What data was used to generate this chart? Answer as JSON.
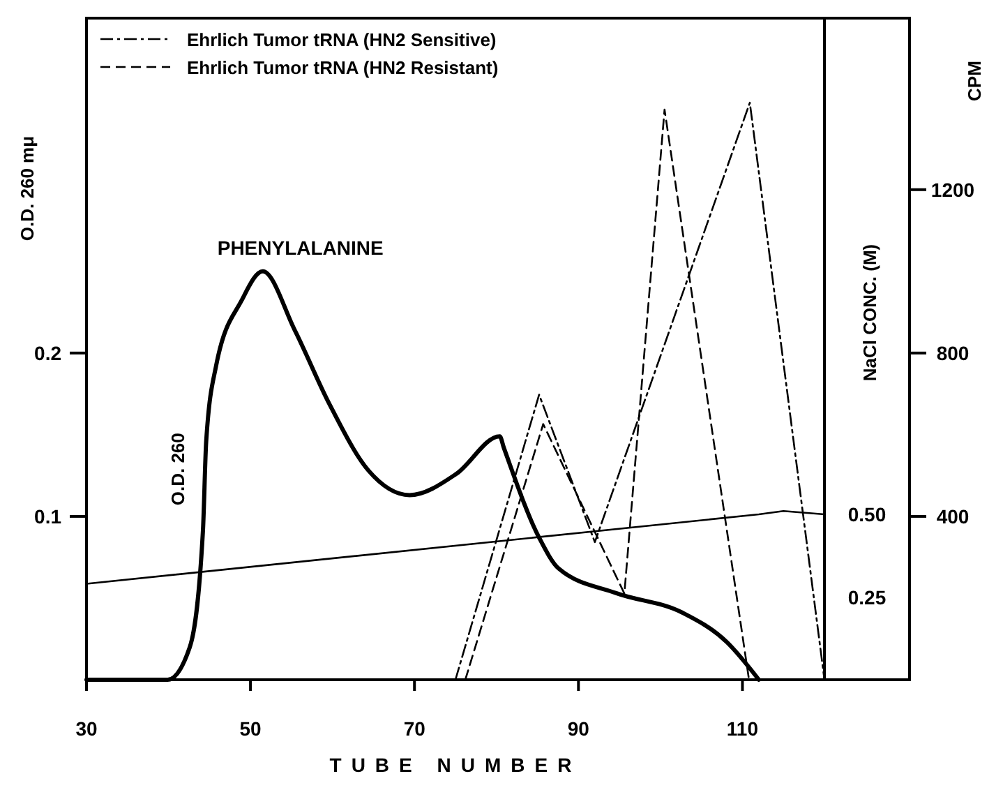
{
  "chart_data": {
    "type": "line",
    "xlabel": "TUBE NUMBER",
    "ylabel": "O.D. 260 mμ",
    "y2label": "CPM",
    "y3label": "NaCl CONC. (M)",
    "xlim": [
      30,
      120
    ],
    "xticks": [
      30,
      50,
      70,
      90,
      110
    ],
    "ylim": [
      0,
      0.405
    ],
    "yticks": [
      0.1,
      0.2
    ],
    "y2lim": [
      0,
      1620
    ],
    "y2ticks": [
      400,
      800,
      1200
    ],
    "y3lim": [
      0,
      2.0
    ],
    "y3ticks": [
      {
        "value": 0.25,
        "label": "0.25"
      },
      {
        "value": 0.5,
        "label": "0.50"
      }
    ],
    "annotations": [
      {
        "text": "PHENYLALANINE",
        "x": 51.5,
        "y": 0.25
      }
    ],
    "legend": "top left",
    "series": [
      {
        "name": "O.D. 260",
        "color": "#000000",
        "line_style": "solid",
        "x": [
          30,
          39.9,
          42.6,
          44.2,
          44.6,
          45.8,
          48.9,
          51.5,
          55.4,
          59.6,
          64.4,
          69.4,
          75.1,
          80.4,
          80.9,
          85.2,
          87.6,
          94.6,
          102.7,
          108.1,
          112
        ],
        "values": [
          0,
          0,
          0.02,
          0.091,
          0.146,
          0.192,
          0.232,
          0.25,
          0.214,
          0.169,
          0.128,
          0.113,
          0.126,
          0.149,
          0.142,
          0.087,
          0.068,
          0.053,
          0.041,
          0.023,
          0
        ]
      },
      {
        "color": "#000000",
        "line_style": "solid",
        "axis": "y3",
        "x": [
          30,
          112,
          115,
          120
        ],
        "values": [
          0.29,
          0.5,
          0.51,
          0.5
        ]
      },
      {
        "name": "Ehrlich Tumor tRNA (HN2 Sensitive)",
        "color": "#000000",
        "line_style": "dashdot",
        "axis": "y2",
        "x": [
          75,
          85.2,
          92,
          110.9,
          120
        ],
        "values": [
          0,
          698,
          337,
          1413,
          0
        ]
      },
      {
        "name": "Ehrlich Tumor tRNA (HN2 Resistant)",
        "color": "#000000",
        "line_style": "dashed",
        "axis": "y2",
        "x": [
          76.2,
          85.7,
          95.6,
          100.5,
          110.8
        ],
        "values": [
          0,
          626,
          211,
          1396,
          0
        ]
      }
    ]
  }
}
